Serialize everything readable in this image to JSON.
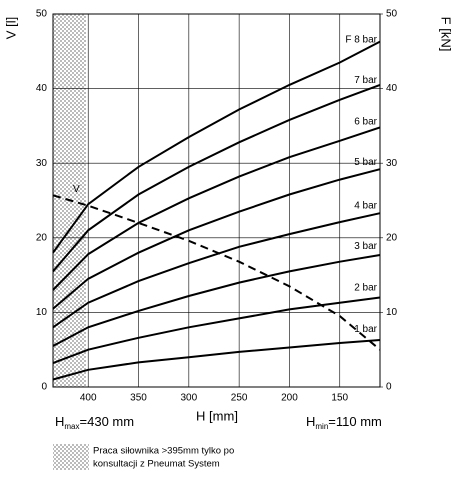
{
  "chart_data": {
    "type": "line",
    "xlabel": "H [mm]",
    "ylabel": "V [l]",
    "y2label": "F [kN]",
    "x": [
      435,
      400,
      350,
      300,
      250,
      200,
      150,
      110
    ],
    "xlim": [
      435,
      110
    ],
    "xticks": [
      400,
      350,
      300,
      250,
      200,
      150
    ],
    "ylim": [
      0,
      50
    ],
    "yticks": [
      0,
      10,
      20,
      30,
      40,
      50
    ],
    "y2lim": [
      0,
      50
    ],
    "y2ticks": [
      0,
      10,
      20,
      30,
      40,
      50
    ],
    "grid": true,
    "series": [
      {
        "name": "V",
        "color": "#000000",
        "dashed": true,
        "values": [
          25.7,
          24.3,
          22,
          19.6,
          16.8,
          13.5,
          9.5,
          5
        ]
      },
      {
        "name": "F 8 bar",
        "color": "#000000",
        "axis": "y2",
        "values": [
          18,
          24.5,
          29.5,
          33.5,
          37.2,
          40.5,
          43.5,
          46.3
        ]
      },
      {
        "name": "7 bar",
        "color": "#000000",
        "axis": "y2",
        "values": [
          15.5,
          21,
          25.8,
          29.5,
          32.8,
          35.8,
          38.5,
          40.5
        ]
      },
      {
        "name": "6 bar",
        "color": "#000000",
        "axis": "y2",
        "values": [
          13,
          17.8,
          22,
          25.3,
          28.2,
          30.8,
          33,
          34.8
        ]
      },
      {
        "name": "5 bar",
        "color": "#000000",
        "axis": "y2",
        "values": [
          10.5,
          14.5,
          18,
          21,
          23.5,
          25.8,
          27.8,
          29.2
        ]
      },
      {
        "name": "4 bar",
        "color": "#000000",
        "axis": "y2",
        "values": [
          8,
          11.3,
          14.2,
          16.6,
          18.8,
          20.5,
          22.1,
          23.3
        ]
      },
      {
        "name": "3 bar",
        "color": "#000000",
        "axis": "y2",
        "values": [
          5.5,
          8,
          10.2,
          12.2,
          14,
          15.5,
          16.8,
          17.7
        ]
      },
      {
        "name": "2 bar",
        "color": "#000000",
        "axis": "y2",
        "values": [
          3.2,
          5,
          6.6,
          8,
          9.2,
          10.4,
          11.3,
          12
        ]
      },
      {
        "name": "1 bar",
        "color": "#000000",
        "axis": "y2",
        "values": [
          1,
          2.3,
          3.3,
          4,
          4.7,
          5.3,
          5.9,
          6.3
        ]
      }
    ],
    "annotations": {
      "h_max": {
        "symbol": "H",
        "sub": "max",
        "text": "=430 mm"
      },
      "h_min": {
        "symbol": "H",
        "sub": "min",
        "text": "=110 mm"
      },
      "note": [
        "Praca siłownika >395mm tylko po",
        "konsultacji z Pneumat System"
      ]
    }
  }
}
